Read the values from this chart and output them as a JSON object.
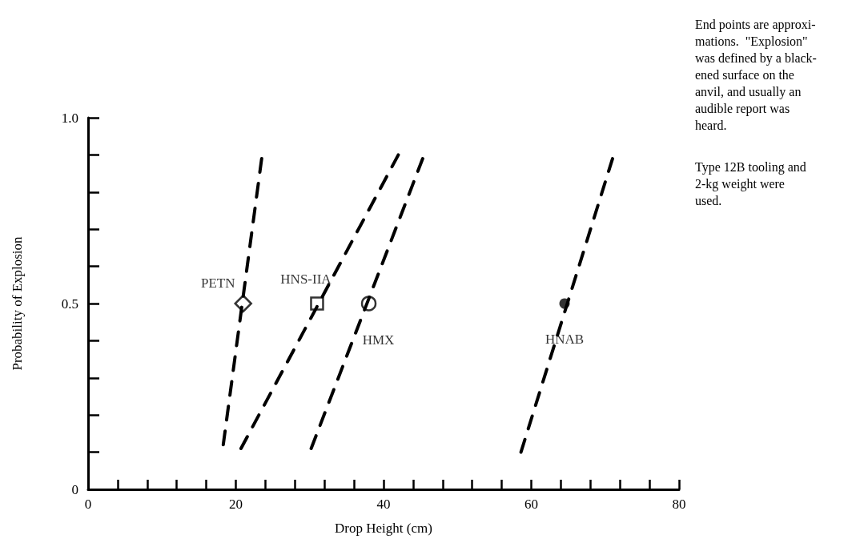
{
  "chart_data": {
    "type": "scatter",
    "xlabel": "Drop Height (cm)",
    "ylabel": "Probability of Explosion",
    "xlim": [
      0,
      80
    ],
    "ylim": [
      0,
      1
    ],
    "xticks": [
      0,
      {
        "value": 4,
        "label": null
      },
      {
        "value": 8,
        "label": null
      },
      {
        "value": 12,
        "label": null
      },
      {
        "value": 16,
        "label": null
      },
      20,
      {
        "value": 24,
        "label": null
      },
      {
        "value": 28,
        "label": null
      },
      {
        "value": 32,
        "label": null
      },
      {
        "value": 36,
        "label": null
      },
      40,
      {
        "value": 44,
        "label": null
      },
      {
        "value": 48,
        "label": null
      },
      {
        "value": 52,
        "label": null
      },
      {
        "value": 56,
        "label": null
      },
      60,
      {
        "value": 64,
        "label": null
      },
      {
        "value": 68,
        "label": null
      },
      {
        "value": 72,
        "label": null
      },
      {
        "value": 76,
        "label": null
      },
      80
    ],
    "yticks": [
      0,
      {
        "value": 0.1,
        "label": null
      },
      {
        "value": 0.2,
        "label": null
      },
      {
        "value": 0.3,
        "label": null
      },
      {
        "value": 0.4,
        "label": null
      },
      {
        "value": 0.5,
        "label": "0.5"
      },
      {
        "value": 0.6,
        "label": null
      },
      {
        "value": 0.7,
        "label": null
      },
      {
        "value": 0.8,
        "label": null
      },
      {
        "value": 0.9,
        "label": null
      },
      {
        "value": 1,
        "label": "1.0"
      }
    ],
    "grid": false,
    "legend": false,
    "series": [
      {
        "type": "line",
        "color": "#000000",
        "line_style": "dashed",
        "marker": "none",
        "x": [
          18.3,
          23.5
        ],
        "values": [
          0.12,
          0.89
        ]
      },
      {
        "type": "line",
        "color": "#000000",
        "line_style": "dashed",
        "marker": "none",
        "x": [
          20.7,
          42
        ],
        "values": [
          0.11,
          0.9
        ]
      },
      {
        "type": "line",
        "color": "#000000",
        "line_style": "dashed",
        "marker": "none",
        "x": [
          30.2,
          45.3
        ],
        "values": [
          0.11,
          0.89
        ]
      },
      {
        "type": "line",
        "color": "#000000",
        "line_style": "dashed",
        "marker": "none",
        "x": [
          58.6,
          71
        ],
        "values": [
          0.1,
          0.89
        ]
      },
      {
        "name": "PETN",
        "color": "#000000",
        "marker": "diamond",
        "x": [
          21
        ],
        "values": [
          0.5
        ]
      },
      {
        "name": "HNS-IIA",
        "color": "#000000",
        "marker": "square",
        "x": [
          31
        ],
        "values": [
          0.5
        ]
      },
      {
        "name": "HMX",
        "color": "#000000",
        "marker": "circle",
        "x": [
          38
        ],
        "values": [
          0.5
        ]
      },
      {
        "name": "HNAB",
        "color": "#000000",
        "marker": "circle",
        "x": [
          64.5
        ],
        "values": [
          0.5
        ]
      }
    ],
    "annotations": [
      "End points are approxi-\nmations.  \"Explosion\"\nwas defined by a black-\nened surface on the\nanvil, and usually an\naudible report was\nheard.",
      "Type 12B tooling and\n2-kg weight were\nused."
    ]
  }
}
